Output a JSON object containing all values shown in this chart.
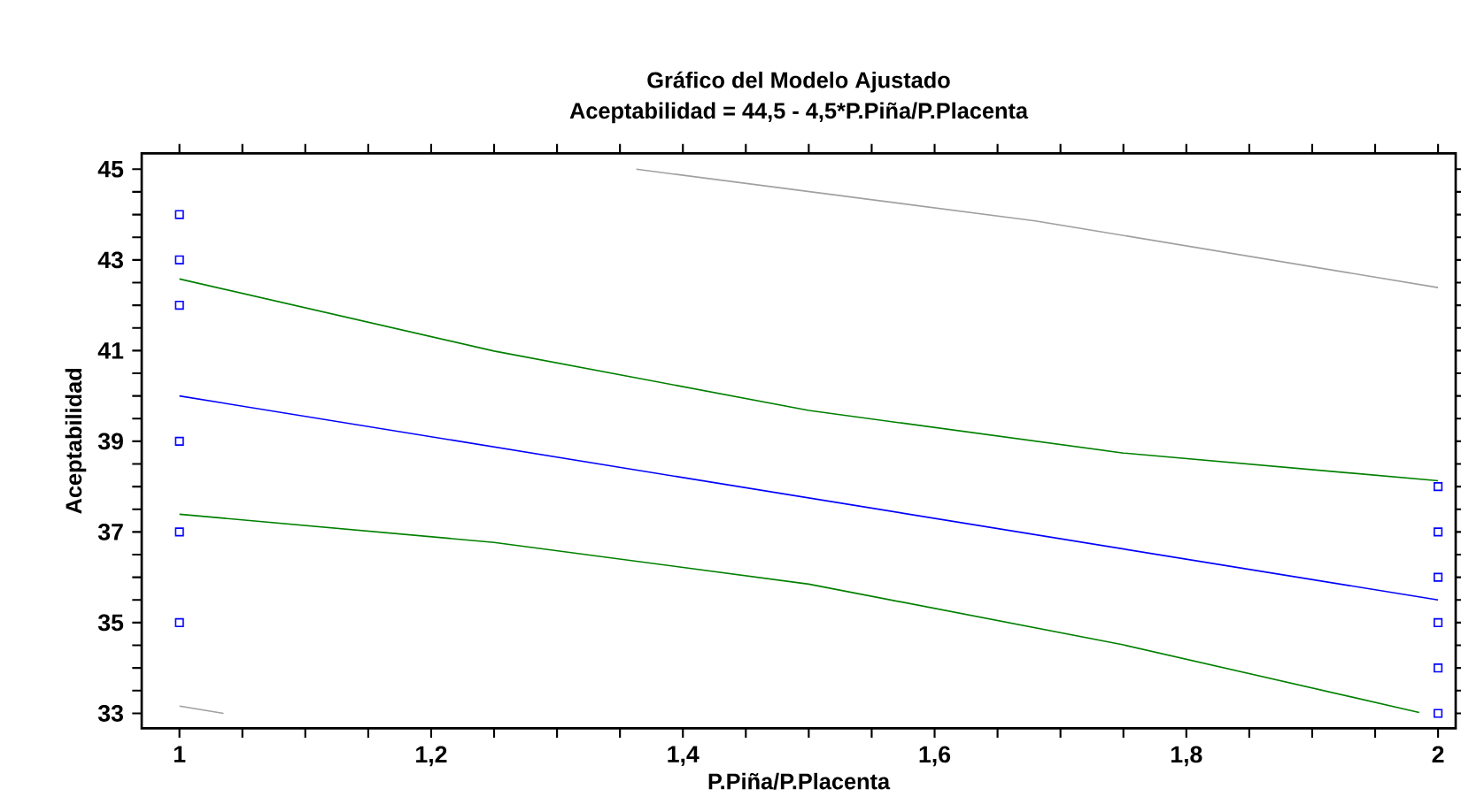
{
  "chart_data": {
    "type": "line",
    "title": "Gráfico del Modelo Ajustado",
    "subtitle": "Aceptabilidad = 44,5 - 4,5*P.Piña/P.Placenta",
    "xlabel": "P.Piña/P.Placenta",
    "ylabel": "Aceptabilidad",
    "xlim": [
      0.97,
      2.014
    ],
    "ylim": [
      32.67,
      45.35
    ],
    "xticks": [
      {
        "value": 1,
        "label": "1"
      },
      {
        "value": 1.05,
        "label": null
      },
      {
        "value": 1.1,
        "label": null
      },
      {
        "value": 1.15,
        "label": null
      },
      {
        "value": 1.2,
        "label": "1,2"
      },
      {
        "value": 1.25,
        "label": null
      },
      {
        "value": 1.3,
        "label": null
      },
      {
        "value": 1.35,
        "label": null
      },
      {
        "value": 1.4,
        "label": "1,4"
      },
      {
        "value": 1.45,
        "label": null
      },
      {
        "value": 1.5,
        "label": null
      },
      {
        "value": 1.55,
        "label": null
      },
      {
        "value": 1.6,
        "label": "1,6"
      },
      {
        "value": 1.65,
        "label": null
      },
      {
        "value": 1.7,
        "label": null
      },
      {
        "value": 1.75,
        "label": null
      },
      {
        "value": 1.8,
        "label": "1,8"
      },
      {
        "value": 1.85,
        "label": null
      },
      {
        "value": 1.9,
        "label": null
      },
      {
        "value": 1.95,
        "label": null
      },
      {
        "value": 2,
        "label": "2"
      }
    ],
    "yticks": [
      33,
      {
        "value": 33.5,
        "label": null
      },
      {
        "value": 34,
        "label": null
      },
      {
        "value": 34.5,
        "label": null
      },
      35,
      {
        "value": 35.5,
        "label": null
      },
      {
        "value": 36,
        "label": null
      },
      {
        "value": 36.5,
        "label": null
      },
      37,
      {
        "value": 37.5,
        "label": null
      },
      {
        "value": 38,
        "label": null
      },
      {
        "value": 38.5,
        "label": null
      },
      39,
      {
        "value": 39.5,
        "label": null
      },
      {
        "value": 40,
        "label": null
      },
      {
        "value": 40.5,
        "label": null
      },
      41,
      {
        "value": 41.5,
        "label": null
      },
      {
        "value": 42,
        "label": null
      },
      {
        "value": 42.5,
        "label": null
      },
      43,
      {
        "value": 43.5,
        "label": null
      },
      {
        "value": 44,
        "label": null
      },
      {
        "value": 44.5,
        "label": null
      },
      45
    ],
    "series": [
      {
        "type": "scatter",
        "marker": "square",
        "color": "#0000ff",
        "x": [
          1,
          1,
          1,
          1,
          1,
          1,
          2,
          2,
          2,
          2,
          2,
          2
        ],
        "values": [
          44,
          43,
          42,
          39,
          37,
          35,
          38,
          37,
          36,
          35,
          34,
          33
        ]
      },
      {
        "marker": "none",
        "line_style": "solid",
        "color": "#0000ff",
        "x": [
          1,
          2
        ],
        "values": [
          40,
          35.5
        ]
      },
      {
        "marker": "none",
        "line_style": "solid",
        "color": "#008000",
        "x": [
          1,
          1.25,
          1.5,
          1.75,
          2
        ],
        "values": [
          42.58,
          40.99,
          39.68,
          38.74,
          38.13
        ]
      },
      {
        "marker": "none",
        "line_style": "solid",
        "color": "#008000",
        "x": [
          1,
          1.25,
          1.5,
          1.75,
          1.985
        ],
        "values": [
          37.39,
          36.77,
          35.85,
          34.51,
          33.02
        ]
      },
      {
        "marker": "none",
        "line_style": "solid",
        "color": "#a0a0a0",
        "x": [
          1.363,
          1.68,
          2
        ],
        "values": [
          45.0,
          43.86,
          42.39
        ]
      },
      {
        "marker": "none",
        "line_style": "solid",
        "color": "#a0a0a0",
        "x": [
          1,
          1.035
        ],
        "values": [
          33.16,
          33.0
        ]
      }
    ]
  }
}
